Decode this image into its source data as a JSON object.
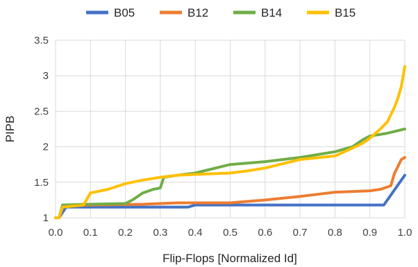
{
  "chart_data": {
    "type": "line",
    "xlabel": "Flip-Flops [Normalized Id]",
    "ylabel": "PIPB",
    "xlim": [
      0,
      1
    ],
    "ylim": [
      1,
      3.5
    ],
    "xticks": [
      "0.0",
      "0.1",
      "0.2",
      "0.3",
      "0.4",
      "0.5",
      "0.6",
      "0.7",
      "0.8",
      "0.9",
      "1.0"
    ],
    "yticks": [
      "1",
      "1.5",
      "2",
      "2.5",
      "3",
      "3.5"
    ],
    "grid": true,
    "legend_position": "top",
    "series": [
      {
        "name": "B05",
        "color": "#4472c4",
        "x": [
          0.0,
          0.01,
          0.03,
          0.1,
          0.38,
          0.4,
          0.94,
          1.0
        ],
        "y": [
          1.0,
          1.0,
          1.15,
          1.15,
          1.15,
          1.18,
          1.18,
          1.6
        ]
      },
      {
        "name": "B12",
        "color": "#ed7d31",
        "x": [
          0.0,
          0.01,
          0.02,
          0.05,
          0.1,
          0.25,
          0.3,
          0.35,
          0.5,
          0.55,
          0.6,
          0.7,
          0.75,
          0.8,
          0.85,
          0.9,
          0.93,
          0.96,
          0.97,
          0.99,
          1.0
        ],
        "y": [
          1.0,
          1.0,
          1.16,
          1.17,
          1.18,
          1.19,
          1.2,
          1.21,
          1.21,
          1.23,
          1.25,
          1.3,
          1.33,
          1.36,
          1.37,
          1.38,
          1.4,
          1.45,
          1.62,
          1.82,
          1.85
        ]
      },
      {
        "name": "B14",
        "color": "#70ad47",
        "x": [
          0.0,
          0.01,
          0.02,
          0.1,
          0.2,
          0.22,
          0.25,
          0.28,
          0.3,
          0.31,
          0.35,
          0.4,
          0.5,
          0.6,
          0.7,
          0.8,
          0.85,
          0.88,
          0.9,
          0.95,
          1.0
        ],
        "y": [
          1.0,
          1.0,
          1.18,
          1.19,
          1.2,
          1.25,
          1.35,
          1.4,
          1.42,
          1.57,
          1.6,
          1.63,
          1.75,
          1.79,
          1.85,
          1.93,
          2.0,
          2.1,
          2.15,
          2.19,
          2.25
        ]
      },
      {
        "name": "B15",
        "color": "#ffc000",
        "x": [
          0.0,
          0.01,
          0.02,
          0.08,
          0.1,
          0.15,
          0.2,
          0.25,
          0.3,
          0.35,
          0.4,
          0.5,
          0.55,
          0.6,
          0.7,
          0.8,
          0.85,
          0.88,
          0.9,
          0.93,
          0.95,
          0.97,
          0.98,
          0.99,
          1.0
        ],
        "y": [
          1.0,
          1.0,
          1.15,
          1.18,
          1.35,
          1.4,
          1.48,
          1.53,
          1.57,
          1.6,
          1.61,
          1.63,
          1.66,
          1.7,
          1.82,
          1.87,
          1.98,
          2.05,
          2.12,
          2.25,
          2.35,
          2.55,
          2.68,
          2.85,
          3.13
        ]
      }
    ]
  }
}
